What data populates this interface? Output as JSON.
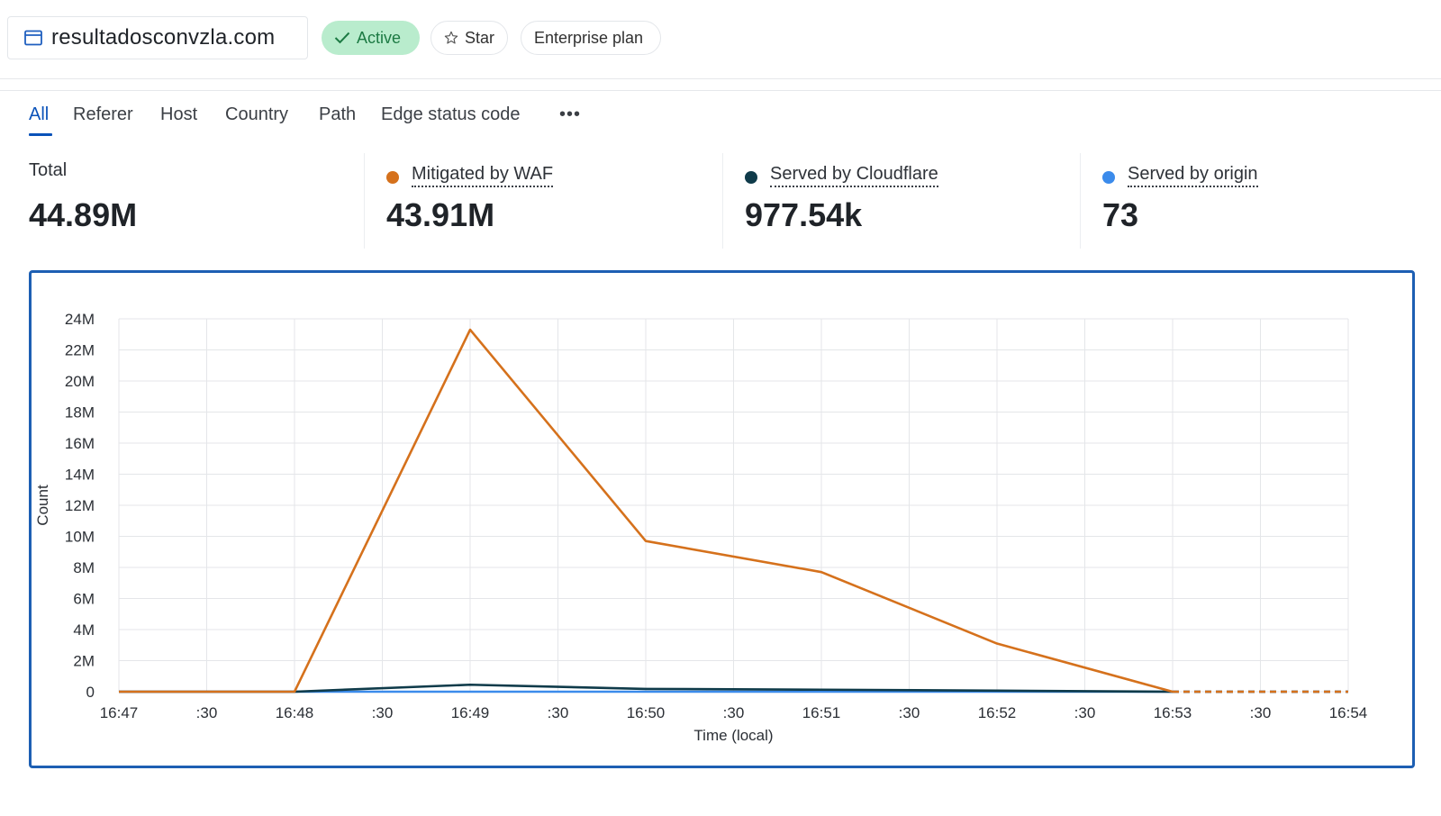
{
  "header": {
    "domain": "resultadosconvzla.com",
    "status": "Active",
    "star": "Star",
    "plan": "Enterprise plan"
  },
  "tabs": [
    {
      "label": "All",
      "active": true
    },
    {
      "label": "Referer"
    },
    {
      "label": "Host"
    },
    {
      "label": "Country"
    },
    {
      "label": "Path"
    },
    {
      "label": "Edge status code"
    }
  ],
  "more_icon": "ellipsis-icon",
  "stats": [
    {
      "label": "Total",
      "value": "44.89M"
    },
    {
      "label": "Mitigated by WAF",
      "value": "43.91M",
      "color": "#d5711c"
    },
    {
      "label": "Served by Cloudflare",
      "value": "977.54k",
      "color": "#0f3b4a"
    },
    {
      "label": "Served by origin",
      "value": "73",
      "color": "#3b8beb"
    }
  ],
  "chart_data": {
    "type": "line",
    "xlabel": "Time (local)",
    "ylabel": "Count",
    "ylim": [
      0,
      24000000
    ],
    "yticks": [
      "0",
      "2M",
      "4M",
      "6M",
      "8M",
      "10M",
      "12M",
      "14M",
      "16M",
      "18M",
      "20M",
      "22M",
      "24M"
    ],
    "xticks": [
      "16:47",
      ":30",
      "16:48",
      ":30",
      "16:49",
      ":30",
      "16:50",
      ":30",
      "16:51",
      ":30",
      "16:52",
      ":30",
      "16:53",
      ":30",
      "16:54"
    ],
    "x": [
      "16:47",
      "16:48",
      "16:49",
      "16:50",
      "16:51",
      "16:52",
      "16:53",
      "16:54"
    ],
    "grid": true,
    "series": [
      {
        "name": "Mitigated by WAF",
        "color": "#d5711c",
        "values": [
          0,
          0,
          23300000,
          9700000,
          7700000,
          3100000,
          0,
          0
        ]
      },
      {
        "name": "Served by Cloudflare",
        "color": "#0f3b4a",
        "values": [
          0,
          0,
          450000,
          180000,
          130000,
          70000,
          0,
          0
        ]
      },
      {
        "name": "Served by origin",
        "color": "#3b8beb",
        "values": [
          0,
          0,
          0,
          0,
          0,
          0,
          0,
          0
        ]
      }
    ],
    "incomplete_from": "16:53"
  }
}
